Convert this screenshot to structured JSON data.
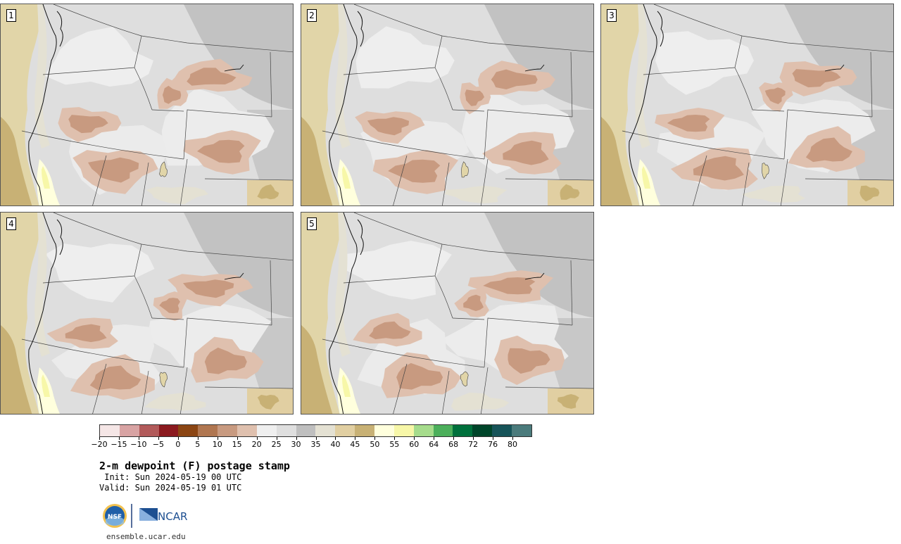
{
  "panels": [
    {
      "label": "1",
      "variant": 0
    },
    {
      "label": "2",
      "variant": 1
    },
    {
      "label": "3",
      "variant": 2
    },
    {
      "label": "4",
      "variant": 3
    },
    {
      "label": "5",
      "variant": 4
    }
  ],
  "colorbar": {
    "colors": [
      "#f5e6e6",
      "#d8a3a3",
      "#b25a5a",
      "#8b1a1f",
      "#8b4513",
      "#b07650",
      "#c89a80",
      "#dfc0ae",
      "#efefef",
      "#dfdfdf",
      "#bfbfbf",
      "#e4e1d3",
      "#e1cfa2",
      "#c8b175",
      "#ffffdd",
      "#f7f7a8",
      "#a6dc8c",
      "#4caf5b",
      "#00703c",
      "#00452a",
      "#175459",
      "#4b7b7c"
    ],
    "tick_labels": [
      "−20",
      "−15",
      "−10",
      "−5",
      "0",
      "5",
      "10",
      "15",
      "20",
      "25",
      "30",
      "35",
      "40",
      "45",
      "50",
      "55",
      "60",
      "64",
      "68",
      "72",
      "76",
      "80"
    ]
  },
  "title": "2-m dewpoint (F) postage stamp",
  "init": " Init: Sun 2024-05-19 00 UTC",
  "valid": "Valid: Sun 2024-05-19 01 UTC",
  "logos": {
    "nsf": "NSF",
    "ncar": "NCAR"
  },
  "website": "ensemble.ucar.edu"
}
